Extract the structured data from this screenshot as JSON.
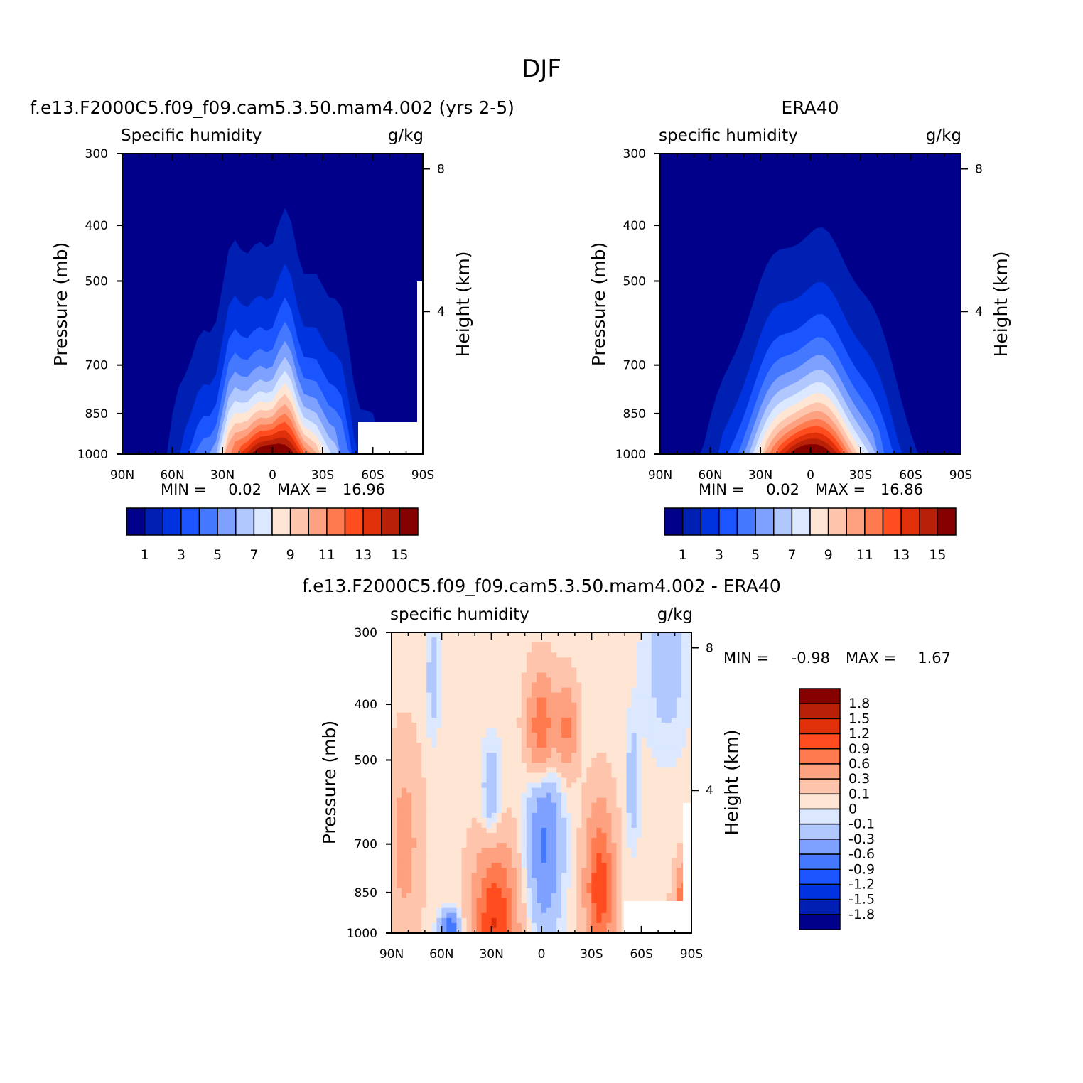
{
  "page": {
    "title": "DJF"
  },
  "colors": {
    "abs_levels": [
      "#00008b",
      "#0020b4",
      "#0033e0",
      "#1a55ff",
      "#4478ff",
      "#7ea1ff",
      "#b1c8ff",
      "#dbe8ff",
      "#ffe5d4",
      "#ffc5ac",
      "#fda180",
      "#ff7a4e",
      "#ff4d1f",
      "#e0300a",
      "#b82008",
      "#870000"
    ],
    "diff_levels": [
      "#00008b",
      "#0020b4",
      "#0033e0",
      "#1a55ff",
      "#4478ff",
      "#7ea1ff",
      "#b1c8ff",
      "#dbe8ff",
      "#ffe5d4",
      "#ffc5ac",
      "#fda180",
      "#ff7a4e",
      "#ff4d1f",
      "#e0300a",
      "#b82008",
      "#870000"
    ]
  },
  "chart_data": [
    {
      "type": "contour",
      "id": "model",
      "title": "f.e13.F2000C5.f09_f09.cam5.3.50.mam4.002 (yrs 2-5)",
      "left_label": "Specific humidity",
      "right_label": "g/kg",
      "ylabel": "Pressure (mb)",
      "ylabel_right": "Height (km)",
      "xticks": [
        "90N",
        "60N",
        "30N",
        "0",
        "30S",
        "60S",
        "90S"
      ],
      "x_values": [
        90,
        60,
        30,
        0,
        -30,
        -60,
        -90
      ],
      "yticks": [
        "300",
        "400",
        "500",
        "700",
        "850",
        "1000"
      ],
      "y_values": [
        300,
        400,
        500,
        700,
        850,
        1000
      ],
      "ylim": [
        1000,
        300
      ],
      "xlim": [
        90,
        -90
      ],
      "yticks_right": [
        "8",
        "4"
      ],
      "stats": {
        "min_label": "MIN =",
        "min": "0.02",
        "max_label": "MAX =",
        "max": "16.96"
      },
      "colorbar_labels": [
        "1",
        "3",
        "5",
        "7",
        "9",
        "11",
        "13",
        "15"
      ],
      "colorbar_levels": [
        1,
        2,
        3,
        4,
        5,
        6,
        7,
        8,
        9,
        10,
        11,
        12,
        13,
        14,
        15
      ],
      "peak": {
        "lat": 0,
        "value": 16.96
      }
    },
    {
      "type": "contour",
      "id": "obs",
      "title": "ERA40",
      "left_label": "specific humidity",
      "right_label": "g/kg",
      "ylabel": "Pressure (mb)",
      "ylabel_right": "Height (km)",
      "xticks": [
        "90N",
        "60N",
        "30N",
        "0",
        "30S",
        "60S",
        "90S"
      ],
      "x_values": [
        90,
        60,
        30,
        0,
        -30,
        -60,
        -90
      ],
      "yticks": [
        "300",
        "400",
        "500",
        "700",
        "850",
        "1000"
      ],
      "y_values": [
        300,
        400,
        500,
        700,
        850,
        1000
      ],
      "ylim": [
        1000,
        300
      ],
      "xlim": [
        90,
        -90
      ],
      "yticks_right": [
        "8",
        "4"
      ],
      "stats": {
        "min_label": "MIN =",
        "min": "0.02",
        "max_label": "MAX =",
        "max": "16.86"
      },
      "colorbar_labels": [
        "1",
        "3",
        "5",
        "7",
        "9",
        "11",
        "13",
        "15"
      ],
      "colorbar_levels": [
        1,
        2,
        3,
        4,
        5,
        6,
        7,
        8,
        9,
        10,
        11,
        12,
        13,
        14,
        15
      ],
      "peak": {
        "lat": 0,
        "value": 16.86
      }
    },
    {
      "type": "contour",
      "id": "diff",
      "title": "f.e13.F2000C5.f09_f09.cam5.3.50.mam4.002 - ERA40",
      "left_label": "specific humidity",
      "right_label": "g/kg",
      "ylabel": "Pressure (mb)",
      "ylabel_right": "Height (km)",
      "xticks": [
        "90N",
        "60N",
        "30N",
        "0",
        "30S",
        "60S",
        "90S"
      ],
      "x_values": [
        90,
        60,
        30,
        0,
        -30,
        -60,
        -90
      ],
      "yticks": [
        "300",
        "400",
        "500",
        "700",
        "850",
        "1000"
      ],
      "y_values": [
        300,
        400,
        500,
        700,
        850,
        1000
      ],
      "ylim": [
        1000,
        300
      ],
      "xlim": [
        90,
        -90
      ],
      "yticks_right": [
        "8",
        "4"
      ],
      "stats": {
        "min_label": "MIN =",
        "min": "-0.98",
        "max_label": "MAX =",
        "max": "1.67"
      },
      "colorbar_labels": [
        "1.8",
        "1.5",
        "1.2",
        "0.9",
        "0.6",
        "0.3",
        "0.1",
        "0",
        "-0.1",
        "-0.3",
        "-0.6",
        "-0.9",
        "-1.2",
        "-1.5",
        "-1.8"
      ],
      "colorbar_levels": [
        1.8,
        1.5,
        1.2,
        0.9,
        0.6,
        0.3,
        0.1,
        0,
        -0.1,
        -0.3,
        -0.6,
        -0.9,
        -1.2,
        -1.5,
        -1.8
      ]
    }
  ]
}
